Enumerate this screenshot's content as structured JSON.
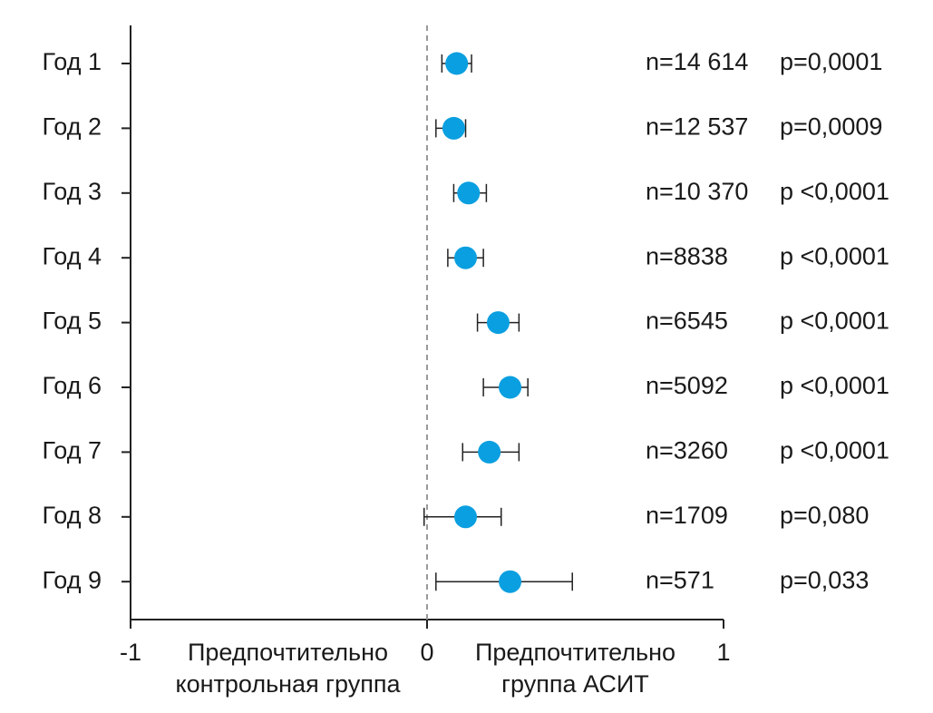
{
  "chart_data": {
    "type": "forest",
    "categories": [
      "Год 1",
      "Год 2",
      "Год 3",
      "Год 4",
      "Год 5",
      "Год 6",
      "Год 7",
      "Год 8",
      "Год 9"
    ],
    "values": [
      0.1,
      0.09,
      0.14,
      0.13,
      0.24,
      0.28,
      0.21,
      0.13,
      0.28
    ],
    "ci_low": [
      0.05,
      0.03,
      0.09,
      0.07,
      0.17,
      0.19,
      0.12,
      -0.01,
      0.03
    ],
    "ci_high": [
      0.15,
      0.13,
      0.2,
      0.19,
      0.31,
      0.34,
      0.31,
      0.25,
      0.49
    ],
    "n_labels": [
      "n=14 614",
      "n=12 537",
      "n=10 370",
      "n=8838",
      "n=6545",
      "n=5092",
      "n=3260",
      "n=1709",
      "n=571"
    ],
    "p_labels": [
      "p=0,0001",
      "p=0,0009",
      "p <0,0001",
      "p <0,0001",
      "p <0,0001",
      "p <0,0001",
      "p <0,0001",
      "p=0,080",
      "p=0,033"
    ],
    "color": "#0a9fe0",
    "xlim": [
      -1,
      1
    ],
    "xticks": [
      -1,
      0,
      1
    ],
    "reference_line": 0,
    "x_annotations": [
      [
        "Предпочтительно",
        "контрольная группа"
      ],
      [
        "Предпочтительно",
        "группа АСИТ"
      ]
    ]
  }
}
